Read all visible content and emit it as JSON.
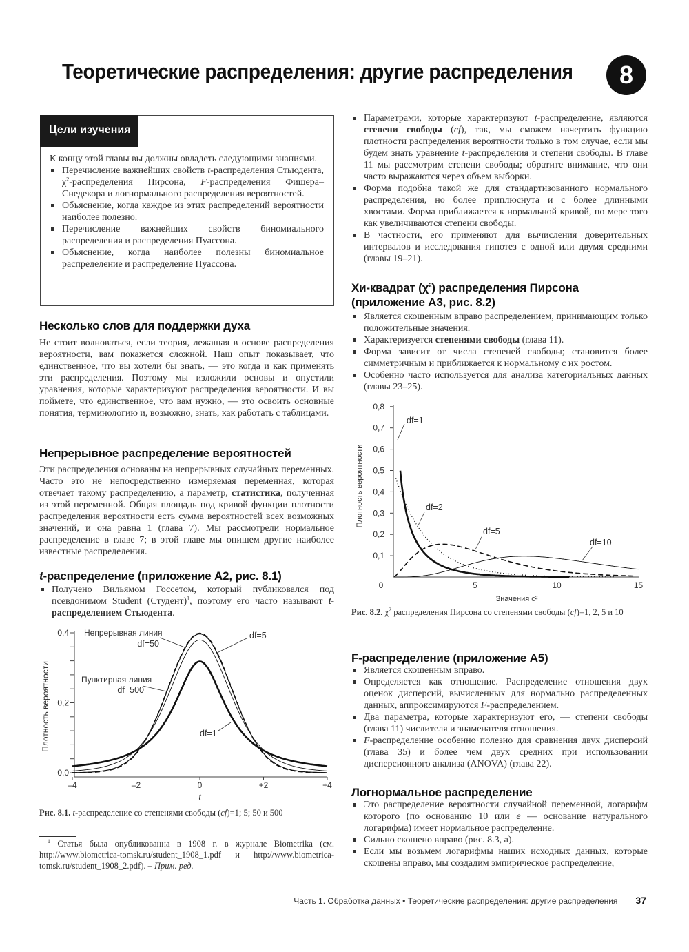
{
  "header": {
    "title": "Теоретические распределения: другие распределения",
    "chapter_number": "8"
  },
  "objectives": {
    "heading": "Цели изучения",
    "intro": [
      [
        "К концу этой главы вы должны овладеть следующими знаниями."
      ]
    ],
    "items": [
      [
        "Перечисление важнейших свойств ",
        {
          "t": "t",
          "i": true
        },
        "-распределения Стьюдента, χ",
        {
          "t": "2",
          "sup": true
        },
        "-распределения Пирсона, ",
        {
          "t": "F",
          "i": true
        },
        "-распределения Фишера–Снедекора и логнормального распределения вероятностей."
      ],
      [
        "Объяснение, когда каждое из этих распределений вероятности наиболее полезно."
      ],
      [
        "Перечисление важнейших свойств биномиального распределения и распределения Пуассона."
      ],
      [
        "Объяснение, когда наиболее полезны биномиальное распределение и распределение Пуассона."
      ]
    ]
  },
  "sections": {
    "encourage": {
      "heading": "Несколько слов для поддержки духа",
      "text": [
        [
          "Не стоит волноваться, если теория, лежащая в основе распределения вероятности, вам покажется сложной. Наш опыт показывает, что единственное, что вы хотели бы знать, — это когда и как применять эти распределения. Поэтому мы изложили основы и опустили уравнения, которые характеризуют распределения вероятности. И вы поймете, что единственное, что вам нужно, — это освоить основные понятия, терминологию и, возможно, знать, как работать с таблицами."
        ]
      ]
    },
    "continuous": {
      "heading": "Непрерывное распределение вероятностей",
      "text": [
        [
          "Эти распределения основаны на непрерывных случайных переменных. Часто это не непосредственно измеряемая переменная, которая отвечает такому распределению, а параметр, ",
          {
            "t": "статистика",
            "b": true
          },
          ", полученная из этой переменной. Общая площадь под кривой функции плотности распределения вероятности есть сумма вероятностей всех возможных значений, и она равна 1 (глава 7). Мы рассмотрели нормальное распределение в главе 7; в этой главе мы опишем другие наиболее известные распределения."
        ]
      ]
    },
    "t_dist": {
      "heading": [
        {
          "t": "t",
          "i": true
        },
        "-распределение (приложение A2, рис. 8.1)"
      ],
      "items": [
        [
          "Получено Вильямом Госсетом, который публиковался под псевдонимом Student (Студент)",
          {
            "t": "1",
            "sup": true
          },
          ", поэтому его часто называют ",
          {
            "t": "t",
            "i": true,
            "b": true
          },
          {
            "t": "-распределением Стьюдента",
            "b": true
          },
          "."
        ]
      ],
      "items_cont": [
        [
          "Параметрами, которые характеризуют ",
          {
            "t": "t",
            "i": true
          },
          "-распределение, являются ",
          {
            "t": "степени свободы",
            "b": true
          },
          " (",
          {
            "t": "cf",
            "i": true
          },
          "), так, мы сможем начертить функцию плотности распределения вероятности только в том случае, если мы будем знать уравнение ",
          {
            "t": "t",
            "i": true
          },
          "-распределения и степени свободы. В главе 11 мы рассмотрим степени свободы; обратите внимание, что они часто выражаются через объем выборки."
        ],
        [
          "Форма подобна такой же для стандартизованного нормального распределения, но более приплюснута и с более длинными хвостами. Форма приближается к нормальной кривой, по мере того как увеличиваются степени свободы."
        ],
        [
          "В частности, его применяют для вычисления доверительных интервалов и исследования гипотез с одной или двумя средними (главы 19–21)."
        ]
      ]
    },
    "chi2": {
      "heading": [
        "Хи-квадрат (χ",
        {
          "t": "2",
          "sup": true
        },
        ") распределения Пирсона (приложение A3, рис. 8.2)"
      ],
      "items": [
        [
          "Является скошенным вправо распределением, принимающим только положительные значения."
        ],
        [
          "Характеризуется ",
          {
            "t": "степенями свободы",
            "b": true
          },
          " (глава 11)."
        ],
        [
          "Форма зависит от числа степеней свободы; становится более симметричным и приближается к нормальному с их ростом."
        ],
        [
          "Особенно часто используется для анализа категориальных данных (главы 23–25)."
        ]
      ]
    },
    "f_dist": {
      "heading": [
        "F-распределение (приложение A5)"
      ],
      "items": [
        [
          "Является скошенным вправо."
        ],
        [
          "Определяется как отношение. Распределение отношения двух оценок дисперсий, вычисленных для нормально распределенных данных, аппроксимируются ",
          {
            "t": "F",
            "i": true
          },
          "-распределением."
        ],
        [
          "Два параметра, которые характеризуют его, — степени свободы (глава 11) числителя и знаменателя отношения."
        ],
        [
          {
            "t": "F",
            "i": true
          },
          "-распределение особенно полезно для сравнения двух дисперсий (глава 35) и более чем двух средних при использовании дисперсионного анализа (ANOVA) (глава 22)."
        ]
      ]
    },
    "lognormal": {
      "heading": [
        "Логнормальное распределение"
      ],
      "items": [
        [
          "Это распределение вероятности случайной переменной, логарифм которого (по основанию 10 или ",
          {
            "t": "e",
            "i": true
          },
          " — основание натурального логарифма) имеет нормальное распределение."
        ],
        [
          "Сильно скошено вправо (рис. 8.3, а)."
        ],
        [
          "Если мы возьмем логарифмы наших исходных данных, которые скошены вправо, мы создадим эмпирическое распределение,"
        ]
      ]
    }
  },
  "figure_captions": {
    "fig1": [
      {
        "t": "Рис. 8.1.",
        "b": true
      },
      " ",
      {
        "t": "t",
        "i": true
      },
      "-распределение со степенями свободы (",
      {
        "t": "cf",
        "i": true
      },
      ")=1; 5; 50 и 500"
    ],
    "fig2": [
      {
        "t": "Рис. 8.2.",
        "b": true
      },
      " χ",
      {
        "t": "2",
        "sup": true
      },
      " распределения Пирсона со степенями свободы (",
      {
        "t": "cf",
        "i": true
      },
      ")=1, 2, 5 и 10"
    ]
  },
  "footnote": [
    {
      "t": "1",
      "sup": true
    },
    " Статья была опубликованна в 1908 г. в журнале Biometrika (см. http://www.biometrica-tomsk.ru/student_1908_1.pdf и http://www.biometrica-tomsk.ru/student_1908_2.pdf). – ",
    {
      "t": "Прим. ред.",
      "i": true
    }
  ],
  "footer": {
    "running_title": "Часть 1. Обработка данных • Теоретические распределения: другие распределения",
    "page_number": "37"
  },
  "chart_data": [
    {
      "type": "line",
      "distribution": "student-t",
      "xlabel": "t",
      "ylabel": "Плотность вероятности",
      "xlim": [
        -4,
        4
      ],
      "ylim": [
        0,
        0.4
      ],
      "xticks": [
        "–4",
        "–2",
        "0",
        "+2",
        "+4"
      ],
      "yticks": [
        "0,0",
        "0,2",
        "0,4"
      ],
      "grid": false,
      "series": [
        {
          "df": 1,
          "style": "thick"
        },
        {
          "df": 5,
          "style": "thin"
        },
        {
          "df": 50,
          "style": "medium"
        },
        {
          "df": 500,
          "style": "dashed"
        }
      ],
      "annotations": [
        {
          "line1": "Непрерывная линия",
          "line2": "df=50"
        },
        {
          "line1": "",
          "line2": "df=5"
        },
        {
          "line1": "Пунктирная линия",
          "line2": "df=500"
        },
        {
          "line1": "",
          "line2": "df=1"
        }
      ]
    },
    {
      "type": "line",
      "distribution": "chi-square",
      "xlabel": "Значения c²",
      "ylabel": "Плотность вероятности",
      "xlim": [
        0,
        15
      ],
      "ylim": [
        0,
        0.8
      ],
      "xticks": [
        "0",
        "5",
        "10",
        "15"
      ],
      "yticks": [
        "0,1",
        "0,2",
        "0,3",
        "0,4",
        "0,5",
        "0,6",
        "0,7",
        "0,8"
      ],
      "grid": false,
      "series": [
        {
          "df": 1,
          "style": "thick"
        },
        {
          "df": 2,
          "style": "dotted"
        },
        {
          "df": 5,
          "style": "dashed"
        },
        {
          "df": 10,
          "style": "thin"
        }
      ],
      "annotations": [
        {
          "line2": "df=1"
        },
        {
          "line2": "df=2"
        },
        {
          "line2": "df=5"
        },
        {
          "line2": "df=10"
        }
      ]
    }
  ]
}
